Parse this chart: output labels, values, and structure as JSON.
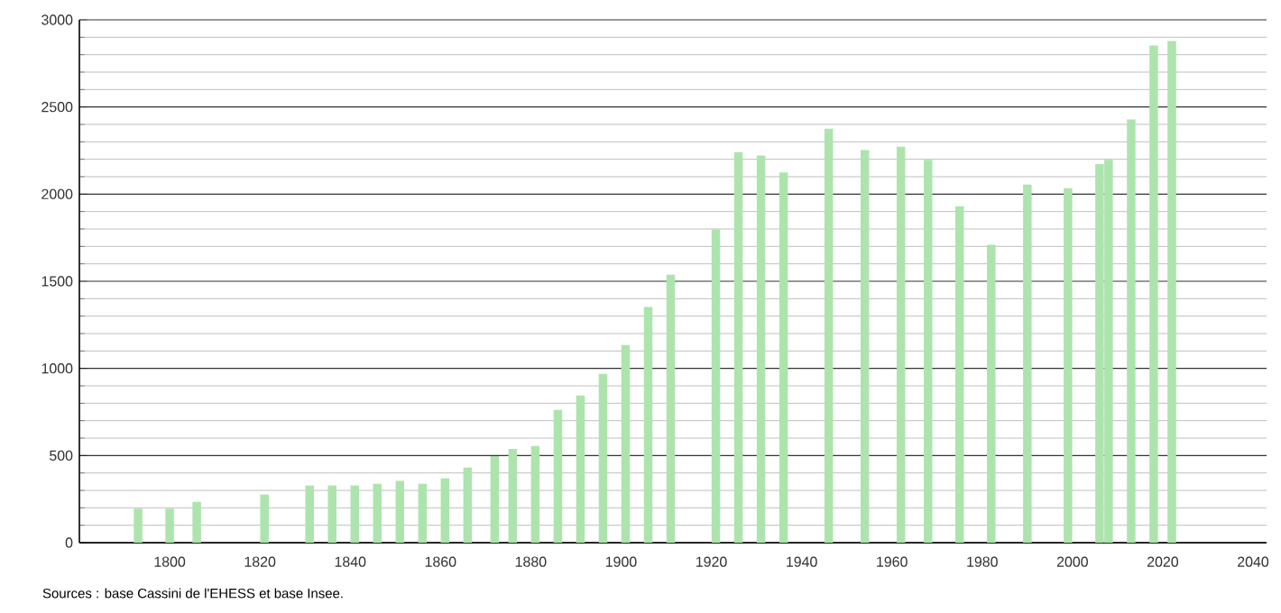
{
  "chart_data": {
    "type": "bar",
    "x": [
      1793,
      1800,
      1806,
      1821,
      1831,
      1836,
      1841,
      1846,
      1851,
      1856,
      1861,
      1866,
      1872,
      1876,
      1881,
      1886,
      1891,
      1896,
      1901,
      1906,
      1911,
      1921,
      1926,
      1931,
      1936,
      1946,
      1954,
      1962,
      1968,
      1975,
      1982,
      1990,
      1999,
      2006,
      2008,
      2013,
      2018,
      2022
    ],
    "values": [
      195,
      195,
      234,
      276,
      328,
      328,
      328,
      338,
      355,
      338,
      369,
      431,
      497,
      538,
      555,
      762,
      845,
      969,
      1134,
      1352,
      1538,
      1797,
      2241,
      2221,
      2124,
      2376,
      2252,
      2272,
      2197,
      1931,
      1710,
      2055,
      2034,
      2172,
      2197,
      2428,
      2852,
      2879
    ],
    "color": "#ade4ad",
    "xlim": [
      1780,
      2043
    ],
    "xticks": [
      1800,
      1820,
      1840,
      1860,
      1880,
      1900,
      1920,
      1940,
      1960,
      1980,
      2000,
      2020,
      2040
    ],
    "ylim": [
      0,
      3000
    ],
    "yticks": [
      0,
      500,
      1000,
      1500,
      2000,
      2500,
      3000
    ],
    "grid": "y",
    "annotations": [
      "Sources : base Cassini de l'EHESS et base Insee."
    ]
  }
}
